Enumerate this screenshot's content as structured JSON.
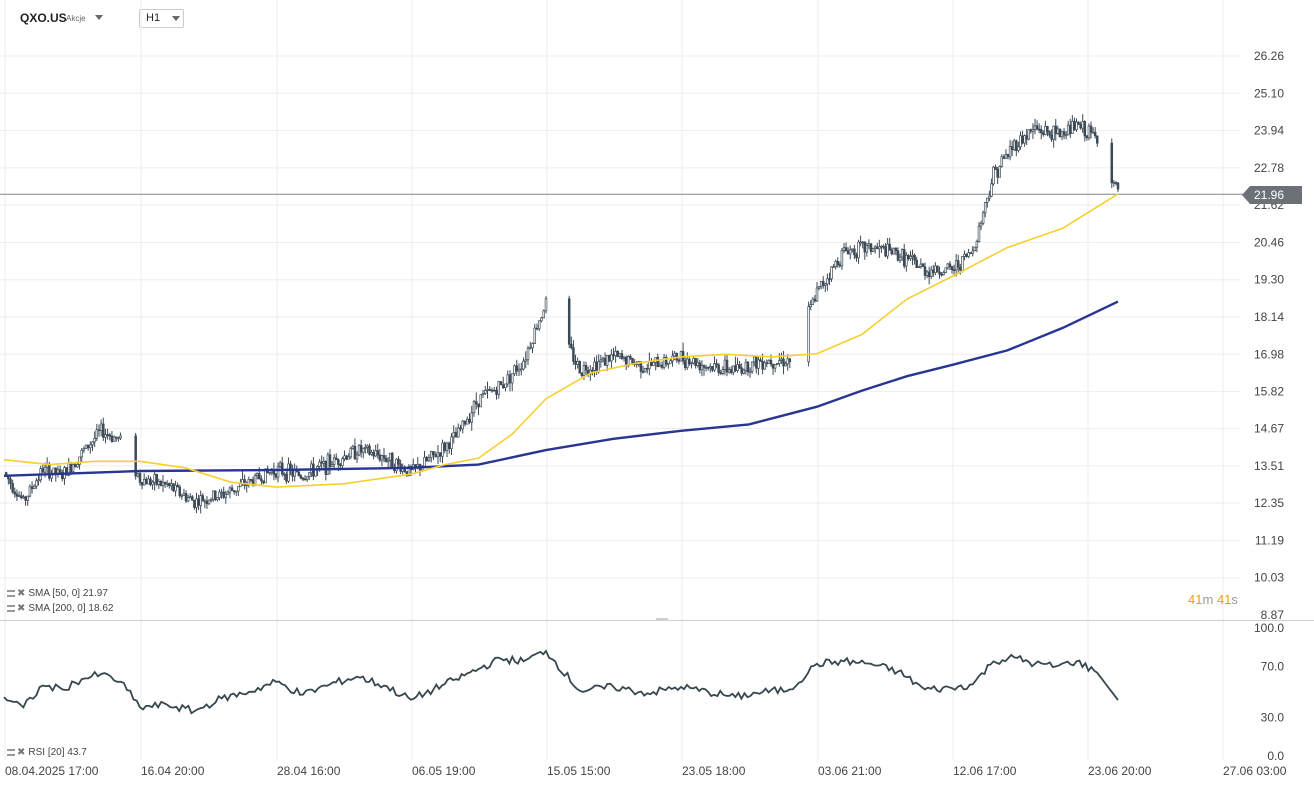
{
  "header": {
    "symbol": "QXO.US",
    "symbol_type": "Akcje",
    "timeframe": "H1"
  },
  "price_axis": {
    "ticks": [
      "26.26",
      "25.10",
      "23.94",
      "22.78",
      "21.62",
      "20.46",
      "19.30",
      "18.14",
      "16.98",
      "15.82",
      "14.67",
      "13.51",
      "12.35",
      "11.19",
      "10.03",
      "8.87"
    ],
    "current_price": "21.96"
  },
  "rsi_axis": {
    "ticks": [
      "100.0",
      "70.0",
      "30.0",
      "0.0"
    ]
  },
  "time_axis": {
    "labels": [
      "08.04.2025  17:00",
      "16.04  20:00",
      "28.04  16:00",
      "06.05  19:00",
      "15.05  15:00",
      "23.05  18:00",
      "03.06  21:00",
      "12.06  17:00",
      "23.06  20:00",
      "27.06  03:00"
    ]
  },
  "legend": {
    "sma50": "SMA  [50,  0]  21.97",
    "sma200": "SMA  [200,  0]  18.62",
    "rsi": "RSI  [20]  43.7"
  },
  "timer": {
    "minutes": "41",
    "minutes_unit": "m",
    "seconds": "41",
    "seconds_unit": "s"
  },
  "colors": {
    "candles": "#3d4a56",
    "sma50": "#f6d02f",
    "sma200": "#283593",
    "rsi": "#37474f",
    "price_tag": "#6b7177",
    "timer": "#f39c12",
    "grid": "#eeeeee"
  },
  "chart_data": {
    "type": "candlestick",
    "symbol": "QXO.US",
    "timeframe": "H1",
    "ylim": [
      8.87,
      26.26
    ],
    "last_price": 21.96,
    "close_path": [
      [
        "08.04.2025 17:00",
        13.3
      ],
      [
        "09.04",
        12.4
      ],
      [
        "10.04",
        13.4
      ],
      [
        "11.04",
        13.2
      ],
      [
        "14.04",
        13.9
      ],
      [
        "15.04",
        14.6
      ],
      [
        "15.04 20:00",
        14.3
      ],
      [
        "16.04 20:00",
        13.1
      ],
      [
        "17.04",
        12.9
      ],
      [
        "22.04",
        12.4
      ],
      [
        "24.04",
        12.6
      ],
      [
        "25.04",
        13.0
      ],
      [
        "28.04 16:00",
        13.4
      ],
      [
        "30.04",
        13.2
      ],
      [
        "01.05",
        13.6
      ],
      [
        "02.05",
        14.0
      ],
      [
        "05.05",
        13.8
      ],
      [
        "06.05 19:00",
        13.3
      ],
      [
        "08.05",
        13.8
      ],
      [
        "09.05",
        14.4
      ],
      [
        "12.05",
        15.6
      ],
      [
        "13.05",
        16.0
      ],
      [
        "14.05",
        16.8
      ],
      [
        "15.05 15:00",
        18.6
      ],
      [
        "16.05",
        16.5
      ],
      [
        "19.05",
        16.9
      ],
      [
        "21.05",
        16.6
      ],
      [
        "23.05 18:00",
        16.9
      ],
      [
        "27.05",
        16.6
      ],
      [
        "28.05",
        16.5
      ],
      [
        "30.05",
        16.8
      ],
      [
        "02.06",
        16.8
      ],
      [
        "03.06 21:00",
        18.9
      ],
      [
        "05.06",
        20.2
      ],
      [
        "06.06",
        20.3
      ],
      [
        "10.06",
        20.1
      ],
      [
        "11.06",
        19.6
      ],
      [
        "12.06 17:00",
        19.6
      ],
      [
        "13.06",
        20.2
      ],
      [
        "16.06",
        22.6
      ],
      [
        "17.06",
        23.5
      ],
      [
        "18.06",
        24.0
      ],
      [
        "19.06",
        23.8
      ],
      [
        "20.06",
        24.1
      ],
      [
        "23.06",
        23.7
      ],
      [
        "23.06 20:00",
        21.96
      ]
    ],
    "series": [
      {
        "name": "SMA [50, 0]",
        "last": 21.97,
        "values": [
          [
            "08.04.2025 17:00",
            13.7
          ],
          [
            "11.04",
            13.55
          ],
          [
            "15.04 20:00",
            13.65
          ],
          [
            "16.04 20:00",
            13.65
          ],
          [
            "22.04",
            13.45
          ],
          [
            "25.04",
            13.0
          ],
          [
            "28.04 16:00",
            12.85
          ],
          [
            "01.05",
            12.95
          ],
          [
            "06.05 19:00",
            13.25
          ],
          [
            "08.05",
            13.55
          ],
          [
            "12.05",
            13.75
          ],
          [
            "14.05",
            14.5
          ],
          [
            "15.05 15:00",
            15.6
          ],
          [
            "16.05",
            16.4
          ],
          [
            "19.05",
            16.7
          ],
          [
            "23.05 18:00",
            16.9
          ],
          [
            "28.05",
            16.98
          ],
          [
            "02.06",
            16.9
          ],
          [
            "03.06 21:00",
            17.0
          ],
          [
            "05.06",
            17.6
          ],
          [
            "10.06",
            18.7
          ],
          [
            "12.06 17:00",
            19.4
          ],
          [
            "16.06",
            20.3
          ],
          [
            "18.06",
            20.9
          ],
          [
            "23.06 20:00",
            21.97
          ]
        ]
      },
      {
        "name": "SMA [200, 0]",
        "last": 18.62,
        "values": [
          [
            "08.04.2025 17:00",
            13.2
          ],
          [
            "15.04 20:00",
            13.35
          ],
          [
            "28.04 16:00",
            13.38
          ],
          [
            "06.05 19:00",
            13.45
          ],
          [
            "12.05",
            13.55
          ],
          [
            "15.05 15:00",
            14.0
          ],
          [
            "16.05",
            14.35
          ],
          [
            "23.05 18:00",
            14.6
          ],
          [
            "28.05",
            14.8
          ],
          [
            "03.06 21:00",
            15.35
          ],
          [
            "06.06",
            15.85
          ],
          [
            "10.06",
            16.3
          ],
          [
            "12.06 17:00",
            16.65
          ],
          [
            "16.06",
            17.1
          ],
          [
            "19.06",
            17.8
          ],
          [
            "23.06 20:00",
            18.62
          ]
        ]
      }
    ],
    "rsi": {
      "name": "RSI [20]",
      "last": 43.7,
      "ylim": [
        0,
        100
      ],
      "values": [
        [
          "08.04.2025 17:00",
          46
        ],
        [
          "09.04",
          38
        ],
        [
          "10.04",
          55
        ],
        [
          "11.04",
          52
        ],
        [
          "14.04",
          60
        ],
        [
          "15.04",
          64
        ],
        [
          "15.04 20:00",
          58
        ],
        [
          "16.04 20:00",
          38
        ],
        [
          "17.04",
          40
        ],
        [
          "22.04",
          35
        ],
        [
          "24.04",
          45
        ],
        [
          "25.04",
          50
        ],
        [
          "28.04 16:00",
          58
        ],
        [
          "30.04",
          48
        ],
        [
          "01.05",
          56
        ],
        [
          "02.05",
          62
        ],
        [
          "05.05",
          55
        ],
        [
          "06.05 19:00",
          44
        ],
        [
          "08.05",
          52
        ],
        [
          "09.05",
          60
        ],
        [
          "12.05",
          68
        ],
        [
          "13.05",
          76
        ],
        [
          "14.05",
          74
        ],
        [
          "15.05 15:00",
          82
        ],
        [
          "16.05",
          51
        ],
        [
          "19.05",
          54
        ],
        [
          "21.05",
          49
        ],
        [
          "23.05 18:00",
          54
        ],
        [
          "27.05",
          50
        ],
        [
          "28.05",
          46
        ],
        [
          "30.05",
          50
        ],
        [
          "02.06",
          52
        ],
        [
          "03.06 21:00",
          72
        ],
        [
          "05.06",
          74
        ],
        [
          "06.06",
          72
        ],
        [
          "10.06",
          66
        ],
        [
          "11.06",
          52
        ],
        [
          "12.06 17:00",
          53
        ],
        [
          "13.06",
          56
        ],
        [
          "16.06",
          74
        ],
        [
          "17.06",
          77
        ],
        [
          "18.06",
          72
        ],
        [
          "19.06",
          70
        ],
        [
          "20.06",
          74
        ],
        [
          "23.06",
          65
        ],
        [
          "23.06 20:00",
          43.7
        ]
      ]
    },
    "x_labels": [
      "08.04.2025 17:00",
      "16.04 20:00",
      "28.04 16:00",
      "06.05 19:00",
      "15.05 15:00",
      "23.05 18:00",
      "03.06 21:00",
      "12.06 17:00",
      "23.06 20:00",
      "27.06 03:00"
    ]
  }
}
